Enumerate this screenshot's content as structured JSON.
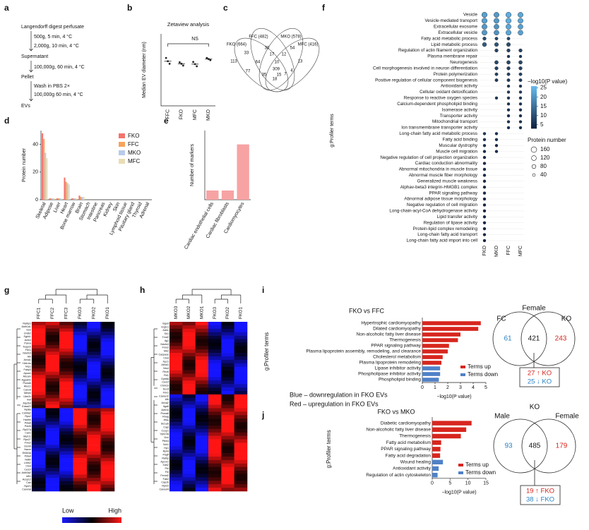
{
  "panel_labels": [
    "a",
    "b",
    "c",
    "d",
    "e",
    "f",
    "g",
    "h",
    "i",
    "j"
  ],
  "protocol": [
    "Langendorff digest perfusate",
    "500g, 5 min, 4 °C",
    "2,000g, 10 min, 4 °C",
    "Supernatant",
    "100,000g, 60 min, 4 °C",
    "Pellet",
    "Wash in PBS 2×",
    "100,000g 60 min, 4 °C",
    "EVs"
  ],
  "notes": [
    "Blue – downregulation in FKO EVs",
    "Red – upregulation in FKO EVs"
  ],
  "heatmaps": [
    {
      "columns": [
        "FFC1",
        "FFC2",
        "FFC3",
        "FKO3",
        "FKO2",
        "FKO1"
      ],
      "rows": [
        "Ralbp1",
        "Aldh1a1",
        "Gsn",
        "Ordb2",
        "Sgkh1",
        "Actn4",
        "Parva",
        "Tcap1b",
        "Fbn1",
        "Ndufs3",
        "Alb",
        "Anxa1",
        "Hbb-bs",
        "Nrp1",
        "Fabp3",
        "Apoa1",
        "Abcam",
        "Agpat2s",
        "Psmd6",
        "Abcs1",
        "Canx8",
        "Mest4",
        "Ube2c",
        "Vwf",
        "Atp2b4",
        "Edaa22",
        "Rpl8a",
        "Cd44a2",
        "Rps2",
        "Hadhb",
        "Pdia6",
        "Pdcl6",
        "Rpl27a",
        "Canx",
        "Myh11",
        "Rps27",
        "Fmo2",
        "Dsmb",
        "Nacm",
        "Eif3k3a",
        "Pdia4",
        "Ndfkt",
        "Lmtn2",
        "Ctsd",
        "Ces1f",
        "Aldh3a2",
        "Id51",
        "Acsp12",
        "Calr",
        "Rpl21",
        "Caveral"
      ]
    },
    {
      "columns": [
        "MKO3",
        "MKO2",
        "MKO1",
        "FKO3",
        "FKO2",
        "FKO1"
      ],
      "rows": [
        "Bgod",
        "Ergic1",
        "Adh1",
        "Sh1",
        "Trnd2",
        "Itg1",
        "Ndufs3",
        "Fmo2",
        "Mb2",
        "Caspase",
        "Ctsd",
        "Kpz1",
        "Abhd1",
        "Nrs4",
        "Rhcb",
        "Fhl1",
        "Dyb8a",
        "Ces1f",
        "Ctnh19",
        "Dcc4",
        "Fbn1",
        "Caveer2",
        "Alb",
        "Anxa2",
        "Itga6",
        "Adh1b",
        "Psma6",
        "Rhag",
        "Pfhk",
        "Slc1a5",
        "Capl",
        "Ccsp1",
        "Vps13a",
        "Dcn",
        "Ptkh4",
        "Ndr1",
        "Hp1",
        "Rpil4",
        "Pdgff",
        "Ralbp",
        "Ap1m1",
        "Xdh2",
        "Pt4",
        "Fhl",
        "Fermt2",
        "Fab2",
        "Capzb",
        "Rpl22",
        "Caveol4"
      ]
    }
  ],
  "heatmap_legend": {
    "low": "Low",
    "high": "High"
  },
  "chart_data": [
    {
      "type": "dot",
      "title": "Zetaview analysis",
      "ylabel": "Median EV diameter (nm)",
      "annotation": "NS",
      "categories": [
        "FFC",
        "FKO",
        "MFC",
        "MKO"
      ],
      "values": [
        124,
        117,
        116,
        130
      ],
      "points": [
        [
          133,
          124,
          117
        ],
        [
          121,
          117,
          112
        ],
        [
          122,
          116,
          110
        ],
        [
          133,
          130,
          127
        ]
      ],
      "ylim": [
        0,
        200
      ],
      "color": "#222222"
    },
    {
      "type": "venn4",
      "sets": [
        "FFC (482)",
        "MKO (578)",
        "FKO (664)",
        "MFC (416)"
      ],
      "values": [
        30,
        54,
        33,
        17,
        12,
        113,
        64,
        10,
        13,
        77,
        309,
        7,
        35,
        15,
        4,
        18
      ]
    },
    {
      "type": "grouped_bar",
      "ylabel": "Protein number",
      "categories": [
        "Skeletal",
        "Adipose",
        "Liver",
        "Heart",
        "Bone marrow",
        "Brain",
        "Stomach",
        "Intestine",
        "Pancreas",
        "Kidney",
        "Skin",
        "Lymphoid tissue",
        "Pituitary gland",
        "Thyroid",
        "Adrenal"
      ],
      "series": [
        {
          "name": "FKO",
          "color": "#f4746c",
          "values": [
            48,
            1,
            1,
            16,
            1,
            3,
            0,
            0,
            0,
            0,
            0,
            0,
            0,
            0,
            0
          ]
        },
        {
          "name": "FFC",
          "color": "#f7a35c",
          "values": [
            44,
            1,
            1,
            13,
            1,
            2,
            0,
            0,
            0,
            0,
            0,
            0,
            0,
            0,
            0
          ]
        },
        {
          "name": "MKO",
          "color": "#b7cbeb",
          "values": [
            34,
            1,
            1,
            12,
            1,
            2,
            0,
            0,
            0,
            0,
            0,
            0,
            0,
            0,
            0
          ]
        },
        {
          "name": "MFC",
          "color": "#e9ddb4",
          "values": [
            30,
            1,
            1,
            11,
            1,
            2,
            0,
            0,
            0,
            0,
            0,
            0,
            0,
            0,
            0
          ]
        }
      ],
      "ylim": [
        0,
        50
      ],
      "yticks": [
        0,
        20,
        40
      ]
    },
    {
      "type": "bar",
      "ylabel": "Number of markers",
      "categories": [
        "Cardiac endothelial cells",
        "Cardiac fibroblasts",
        "Cardiomyocytes"
      ],
      "values": [
        1,
        1,
        6
      ],
      "color": "#f7a3a3",
      "ylim": [
        0,
        7.5
      ]
    },
    {
      "type": "dotmatrix",
      "ylabel": "g:Profiler terms",
      "terms": [
        "Vesicle",
        "Vesicle-mediated transport",
        "Extracellular exosome",
        "Extracellular vesicle",
        "Fatty acid metabolic process",
        "Lipid metabolic process",
        "Regulation of actin filament organization",
        "Plasma membrane repair",
        "Neurogenesis",
        "Cell morphogenesis involved in neuron differentiation",
        "Protein polymerization",
        "Positive regulation of cellular component biogenesis",
        "Antioxidant activity",
        "Cellular oxidant detoxification",
        "Response to reactive oxygen species",
        "Calcium-dependent phospholipid binding",
        "Isomerase activity",
        "Transporter activity",
        "Mitochondrial transport",
        "Ion transmembrane transporter activity",
        "Long-chain fatty acid metabolic process",
        "Fatty acid binding",
        "Muscular dystrophy",
        "Muscle cell migration",
        "Negative regulation of cell projection organization",
        "Cardiac conduction abnormality",
        "Abnormal mitochondria in muscle tissue",
        "Abnormal muscle fiber morphology",
        "Generalized muscle weakness",
        "Alphav-beta3 integrin-HMGB1 complex",
        "PPAR signaling pathway",
        "Abnormal adipose tissue morphology",
        "Negative regulation of cell migration",
        "Long-chain-acyl-CoA dehydrogenase activity",
        "Lipid transfer activity",
        "Regulation of lipase activity",
        "Protein-lipid complex remodeling",
        "Long-chain fatty acid transport",
        "Long-chain fatty acid import into cell"
      ],
      "series": [
        {
          "name": "FKO",
          "values": [
            22,
            22,
            21,
            21,
            10,
            12,
            null,
            null,
            null,
            null,
            null,
            null,
            null,
            null,
            null,
            null,
            null,
            null,
            null,
            null,
            7,
            6,
            6,
            5,
            5,
            5,
            5,
            5,
            5,
            5,
            5,
            4,
            4,
            4,
            4,
            4,
            4,
            4,
            4
          ],
          "sizes": [
            150,
            150,
            140,
            140,
            60,
            90,
            null,
            null,
            null,
            null,
            null,
            null,
            null,
            null,
            null,
            null,
            null,
            null,
            null,
            null,
            40,
            40,
            40,
            40,
            40,
            40,
            40,
            40,
            40,
            40,
            40,
            40,
            40,
            40,
            40,
            40,
            40,
            40,
            40
          ]
        },
        {
          "name": "MKO",
          "values": [
            21,
            21,
            20,
            20,
            9,
            11,
            8,
            null,
            9,
            8,
            8,
            7,
            null,
            null,
            7,
            null,
            null,
            null,
            null,
            null,
            6,
            6,
            5,
            5,
            null,
            null,
            null,
            null,
            null,
            null,
            null,
            null,
            null,
            null,
            null,
            null,
            null,
            null,
            null
          ],
          "sizes": [
            140,
            140,
            130,
            130,
            50,
            80,
            60,
            null,
            70,
            60,
            50,
            50,
            null,
            null,
            40,
            null,
            null,
            null,
            null,
            null,
            40,
            40,
            40,
            40,
            null,
            null,
            null,
            null,
            null,
            null,
            null,
            null,
            null,
            null,
            null,
            null,
            null,
            null,
            null
          ]
        },
        {
          "name": "FFC",
          "values": [
            24,
            24,
            23,
            23,
            9,
            10,
            8,
            7,
            9,
            8,
            8,
            7,
            7,
            7,
            7,
            6,
            6,
            6,
            6,
            6,
            null,
            null,
            null,
            null,
            null,
            null,
            null,
            null,
            null,
            null,
            null,
            null,
            null,
            null,
            null,
            null,
            null,
            null,
            null
          ],
          "sizes": [
            150,
            150,
            140,
            140,
            50,
            80,
            60,
            40,
            70,
            60,
            50,
            50,
            40,
            40,
            40,
            40,
            40,
            40,
            40,
            40,
            null,
            null,
            null,
            null,
            null,
            null,
            null,
            null,
            null,
            null,
            null,
            null,
            null,
            null,
            null,
            null,
            null,
            null,
            null
          ]
        },
        {
          "name": "MFC",
          "values": [
            23,
            23,
            22,
            22,
            null,
            null,
            8,
            7,
            9,
            8,
            8,
            7,
            7,
            7,
            7,
            6,
            6,
            6,
            6,
            6,
            null,
            null,
            null,
            null,
            null,
            null,
            null,
            null,
            null,
            null,
            null,
            null,
            null,
            null,
            null,
            null,
            null,
            null,
            null
          ],
          "sizes": [
            140,
            140,
            130,
            130,
            null,
            null,
            60,
            40,
            70,
            60,
            50,
            50,
            40,
            40,
            40,
            40,
            40,
            40,
            40,
            40,
            null,
            null,
            null,
            null,
            null,
            null,
            null,
            null,
            null,
            null,
            null,
            null,
            null,
            null,
            null,
            null,
            null,
            null,
            null
          ]
        }
      ],
      "color_title": "−log10(P value)",
      "clim": [
        3,
        26
      ],
      "cticks": [
        25,
        20,
        15,
        10,
        5
      ],
      "colors": [
        "#0f1f3d",
        "#66bbef"
      ],
      "size_title": "Protein number",
      "size_ticks": [
        160,
        120,
        80,
        40
      ]
    },
    {
      "type": "hbar",
      "title": "FKO vs FFC",
      "ylabel": "g:Profiler terms",
      "xlabel": "−log10(P value)",
      "categories": [
        "Hypertrophic cardiomyopathy",
        "Dilated cardiomyopathy",
        "Non-alcoholic fatty liver disease",
        "Thermogenesis",
        "PPAR signaling pathway",
        "Plasma lipoprotein assembly, remodeling, and clearance",
        "Cholesterol metabolism",
        "Plasma lipoprotein remodeling",
        "Lipase inhibitor activity",
        "Phospholipase inhibitor activity",
        "Phospholipid binding"
      ],
      "series": [
        {
          "name": "Terms up",
          "color": "#d7261e",
          "values": [
            4.6,
            4.4,
            3.0,
            2.8,
            2.1,
            2.0,
            1.6,
            1.5,
            null,
            null,
            null
          ]
        },
        {
          "name": "Terms down",
          "color": "#4f81c7",
          "values": [
            null,
            null,
            null,
            null,
            null,
            null,
            null,
            null,
            1.4,
            1.4,
            1.3
          ]
        }
      ],
      "xlim": [
        0,
        5
      ],
      "xticks": [
        0,
        1,
        2,
        3,
        4,
        5
      ],
      "venn": {
        "title": "Female",
        "sets": [
          "FC",
          "KO"
        ],
        "values": [
          61,
          421,
          243
        ],
        "up": "27 ↑ KO",
        "down": "25 ↓ KO"
      }
    },
    {
      "type": "hbar",
      "title": "FKO vs MKO",
      "ylabel": "g:Profiler terms",
      "xlabel": "−log10(P value)",
      "categories": [
        "Diabetic cardiomyopathy",
        "Non-alcoholic fatty liver disease",
        "Thermogenesis",
        "Fatty acid metabolism",
        "PPAR signaling pathway",
        "Fatty acid degradation",
        "Wound healing",
        "Antioxidant activity",
        "Regulation of actin cytoskeleton"
      ],
      "series": [
        {
          "name": "Terms up",
          "color": "#d7261e",
          "values": [
            11,
            9.5,
            8,
            2.5,
            2.3,
            2.2,
            null,
            null,
            null
          ]
        },
        {
          "name": "Terms down",
          "color": "#4f81c7",
          "values": [
            null,
            null,
            null,
            null,
            null,
            null,
            3,
            1.8,
            1.5
          ]
        }
      ],
      "xlim": [
        0,
        15
      ],
      "xticks": [
        0,
        5,
        10,
        15
      ],
      "venn": {
        "title": "KO",
        "sets": [
          "Male",
          "Female"
        ],
        "values": [
          93,
          485,
          179
        ],
        "up": "19 ↑ FKO",
        "down": "38 ↓ FKO"
      }
    }
  ]
}
